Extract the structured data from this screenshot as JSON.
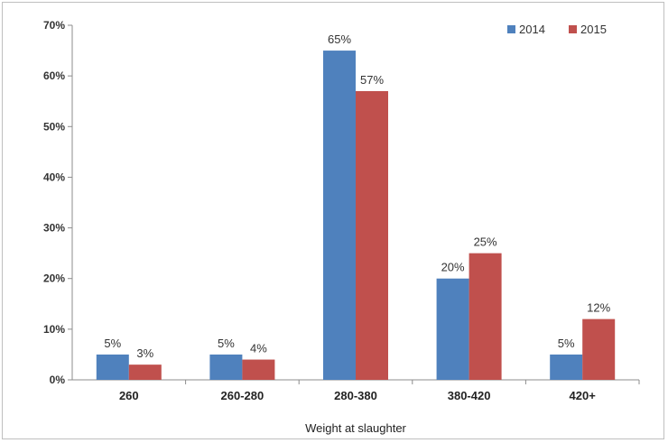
{
  "chart_data": {
    "type": "bar",
    "categories": [
      "260",
      "260-280",
      "280-380",
      "380-420",
      "420+"
    ],
    "series": [
      {
        "name": "2014",
        "values": [
          5,
          5,
          65,
          20,
          5
        ],
        "labels": [
          "5%",
          "5%",
          "65%",
          "20%",
          "5%"
        ],
        "color": "#4f81bd"
      },
      {
        "name": "2015",
        "values": [
          3,
          4,
          57,
          25,
          12
        ],
        "labels": [
          "3%",
          "4%",
          "57%",
          "25%",
          "12%"
        ],
        "color": "#c0504d"
      }
    ],
    "ylim": [
      0,
      70
    ],
    "yticks": [
      0,
      10,
      20,
      30,
      40,
      50,
      60,
      70
    ],
    "ytick_labels": [
      "0%",
      "10%",
      "20%",
      "30%",
      "40%",
      "50%",
      "60%",
      "70%"
    ],
    "xlabel": "Weight at slaughter",
    "ylabel": "",
    "title": "",
    "legend": "top-right",
    "grid": false
  }
}
